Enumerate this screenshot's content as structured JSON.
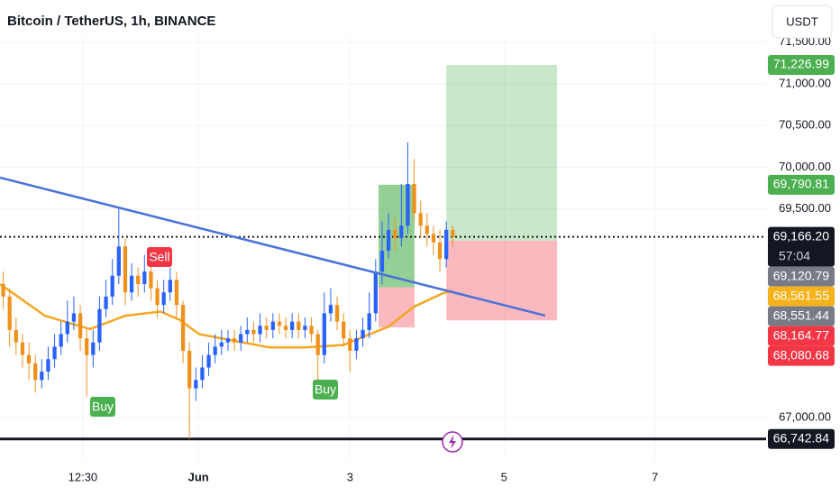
{
  "header": {
    "title": "Bitcoin / TetherUS, 1h, BINANCE",
    "currency": "USDT"
  },
  "chart_data": {
    "type": "candlestick",
    "xlim": [
      0,
      238.6
    ],
    "xticks": [
      {
        "value": 25.8,
        "label": "12:30"
      },
      {
        "value": 61.8,
        "label": "Jun"
      },
      {
        "value": 109,
        "label": "3"
      },
      {
        "value": 157,
        "label": "5"
      },
      {
        "value": 204,
        "label": "7"
      }
    ],
    "ylim": [
      66492,
      72005
    ],
    "yticks": [
      {
        "value": 71500,
        "label": "71,500.00"
      },
      {
        "value": 71000,
        "label": "71,000.00"
      },
      {
        "value": 70500,
        "label": "70,500.00"
      },
      {
        "value": 70000,
        "label": "70,000.00"
      },
      {
        "value": 69500,
        "label": "69,500.00"
      },
      {
        "value": 67000,
        "label": "67,000.00"
      }
    ],
    "up_color": "#2962ff",
    "down_color": "#f0911c",
    "x": [
      1,
      3,
      5,
      7,
      9,
      11,
      13,
      15,
      17,
      19,
      21,
      23,
      25,
      27,
      29,
      31,
      33,
      35,
      37,
      39,
      41,
      43,
      45,
      47,
      49,
      51,
      53,
      55,
      57,
      59,
      61,
      63,
      65,
      67,
      69,
      71,
      73,
      75,
      77,
      79,
      81,
      83,
      85,
      87,
      89,
      91,
      93,
      95,
      97,
      99,
      101,
      103,
      105,
      107,
      109,
      111,
      113,
      115,
      117,
      119,
      121,
      123,
      125,
      127,
      129,
      131,
      133,
      135,
      137,
      139,
      141
    ],
    "open": [
      68600,
      68450,
      68050,
      67900,
      67750,
      67650,
      67450,
      67550,
      67700,
      67850,
      68000,
      68150,
      68250,
      67950,
      67750,
      67900,
      68300,
      68450,
      68700,
      69050,
      68500,
      68700,
      68600,
      68750,
      68550,
      68350,
      68500,
      68650,
      68350,
      67800,
      67350,
      67450,
      67600,
      67750,
      67850,
      67900,
      67950,
      67900,
      68000,
      68050,
      68000,
      68100,
      68050,
      68150,
      68100,
      68050,
      68150,
      68050,
      68100,
      68000,
      67750,
      68250,
      68350,
      68150,
      67950,
      67800,
      67950,
      68050,
      68250,
      68750,
      69000,
      69250,
      69150,
      69300,
      69800,
      69450,
      69300,
      69200,
      69100,
      68900,
      69250
    ],
    "high": [
      68750,
      68550,
      68200,
      68000,
      67900,
      67750,
      67700,
      67850,
      68000,
      68150,
      68400,
      68450,
      68350,
      68050,
      68050,
      68450,
      68650,
      68900,
      69500,
      69150,
      68850,
      68800,
      68950,
      68850,
      68650,
      68650,
      68800,
      68750,
      68400,
      67900,
      67600,
      67750,
      67900,
      68000,
      68050,
      68050,
      68050,
      68100,
      68200,
      68150,
      68250,
      68200,
      68250,
      68250,
      68200,
      68250,
      68250,
      68200,
      68200,
      68050,
      68500,
      68550,
      68450,
      68250,
      68050,
      68050,
      68200,
      68500,
      68900,
      69350,
      69450,
      69400,
      69800,
      70300,
      70100,
      69600,
      69450,
      69300,
      69250,
      69350,
      69300
    ],
    "low": [
      68300,
      67850,
      67750,
      67600,
      67450,
      67300,
      67350,
      67450,
      67600,
      67750,
      67900,
      68050,
      67800,
      67250,
      67600,
      67800,
      68200,
      68350,
      68600,
      68350,
      68400,
      68450,
      68500,
      68400,
      68200,
      68250,
      68400,
      68200,
      67650,
      66742.84,
      67200,
      67350,
      67500,
      67650,
      67750,
      67800,
      67800,
      67800,
      67900,
      67900,
      67900,
      67950,
      67950,
      68000,
      67950,
      67950,
      67950,
      67950,
      67900,
      67450,
      67650,
      68150,
      68050,
      67850,
      67550,
      67700,
      67850,
      67950,
      68150,
      68600,
      68900,
      69000,
      69050,
      69200,
      69350,
      69150,
      69050,
      68950,
      68750,
      68800,
      69050
    ],
    "close": [
      68450,
      68050,
      67900,
      67750,
      67650,
      67450,
      67550,
      67700,
      67850,
      68000,
      68150,
      68250,
      67950,
      67750,
      67900,
      68300,
      68450,
      68700,
      69050,
      68500,
      68700,
      68600,
      68750,
      68550,
      68350,
      68500,
      68650,
      68350,
      67800,
      67350,
      67450,
      67600,
      67750,
      67850,
      67900,
      67950,
      67900,
      68000,
      68050,
      68000,
      68100,
      68050,
      68150,
      68100,
      68050,
      68150,
      68050,
      68100,
      68000,
      67750,
      68250,
      68350,
      68150,
      67950,
      67800,
      67950,
      68050,
      68250,
      68750,
      69000,
      69250,
      69150,
      69300,
      69800,
      69450,
      69300,
      69200,
      69100,
      68900,
      69250,
      69166.2
    ],
    "ema": {
      "color": "#f5a623",
      "x": [
        0,
        14,
        28,
        39,
        50,
        56,
        62,
        73,
        84,
        95,
        107,
        112,
        121,
        129,
        138,
        141
      ],
      "values": [
        68600,
        68220,
        68060,
        68220,
        68270,
        68170,
        68000,
        67920,
        67840,
        67840,
        67870,
        67950,
        68090,
        68330,
        68490,
        68520
      ]
    },
    "trendline": {
      "color": "#4a72d9",
      "x": [
        0,
        169.8
      ],
      "values": [
        69876,
        68222
      ]
    },
    "positions": [
      {
        "x": [
          117.9,
          129.1
        ],
        "entry": 68561.55,
        "target": 69790.81,
        "stop": 68080.68
      },
      {
        "x": [
          139,
          173.5
        ],
        "entry": 69120.79,
        "target": 71226.99,
        "stop": 68164.77
      }
    ],
    "current_price": 69166.2,
    "support": 66742.84,
    "signals": [
      "Sell",
      "Buy",
      "Buy"
    ],
    "price_tags": [
      {
        "value": 71226.99,
        "label": "71,226.99",
        "color": "#4caf50"
      },
      {
        "value": 69790.81,
        "label": "69,790.81",
        "color": "#4caf50"
      },
      {
        "value": 69166.2,
        "label": "69,166.20",
        "color": "#131722",
        "countdown": "57:04"
      },
      {
        "value": 69120.79,
        "label": "69,120.79",
        "color": "#787b86"
      },
      {
        "value": 68561.55,
        "label": "68,561.55",
        "color": "#f5b21b"
      },
      {
        "value": 68551.44,
        "label": "68,551.44",
        "color": "#787b86"
      },
      {
        "value": 68164.77,
        "label": "68,164.77",
        "color": "#f23645"
      },
      {
        "value": 68080.68,
        "label": "68,080.68",
        "color": "#f23645"
      },
      {
        "value": 66742.84,
        "label": "66,742.84",
        "color": "#131722"
      }
    ]
  }
}
